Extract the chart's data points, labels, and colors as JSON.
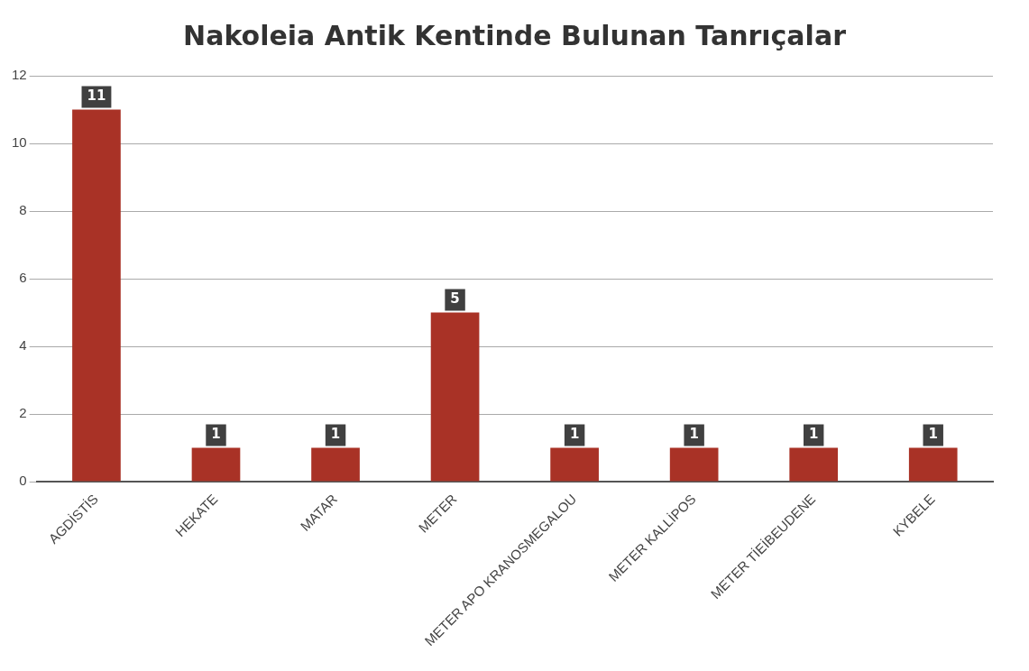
{
  "chart_data": {
    "type": "bar",
    "title": "Nakoleia Antik Kentinde Bulunan Tanrıçalar",
    "categories": [
      "AGDİSTİS",
      "HEKATE",
      "MATAR",
      "METER",
      "METER APO KRANOSMEGALOU",
      "METER KALLİPOS",
      "METER TİEİBEUDENE",
      "KYBELE"
    ],
    "values": [
      11,
      1,
      1,
      5,
      1,
      1,
      1,
      1
    ],
    "color": "#a93226",
    "ylim": [
      0,
      12
    ],
    "yticks": [
      0,
      2,
      4,
      6,
      8,
      10,
      12
    ],
    "grid": "y",
    "data_labels": true
  }
}
